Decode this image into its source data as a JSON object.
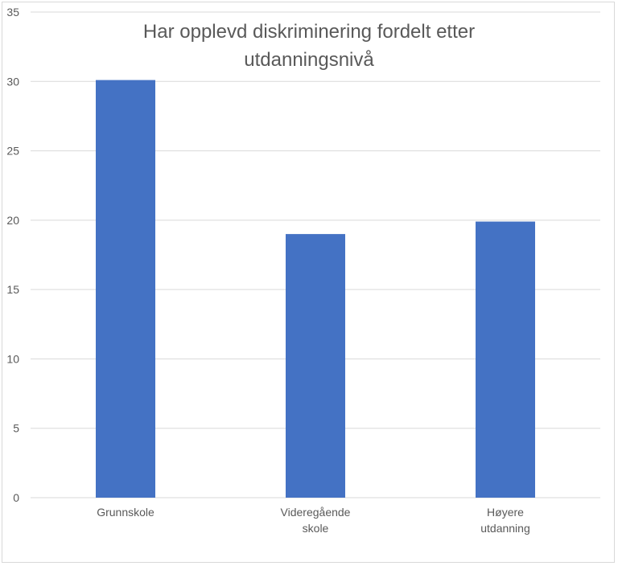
{
  "chart_data": {
    "type": "bar",
    "title_lines": [
      "Har opplevd diskriminering fordelt etter",
      "utdanningsnivå"
    ],
    "categories": [
      [
        "Grunnskole"
      ],
      [
        "Videregående",
        "skole"
      ],
      [
        "Høyere",
        "utdanning"
      ]
    ],
    "values": [
      30.1,
      19.0,
      19.9
    ],
    "ylim": [
      0,
      35
    ],
    "yticks": [
      0,
      5,
      10,
      15,
      20,
      25,
      30,
      35
    ],
    "grid": true,
    "bar_color": "#4472c4",
    "legend": "none"
  }
}
